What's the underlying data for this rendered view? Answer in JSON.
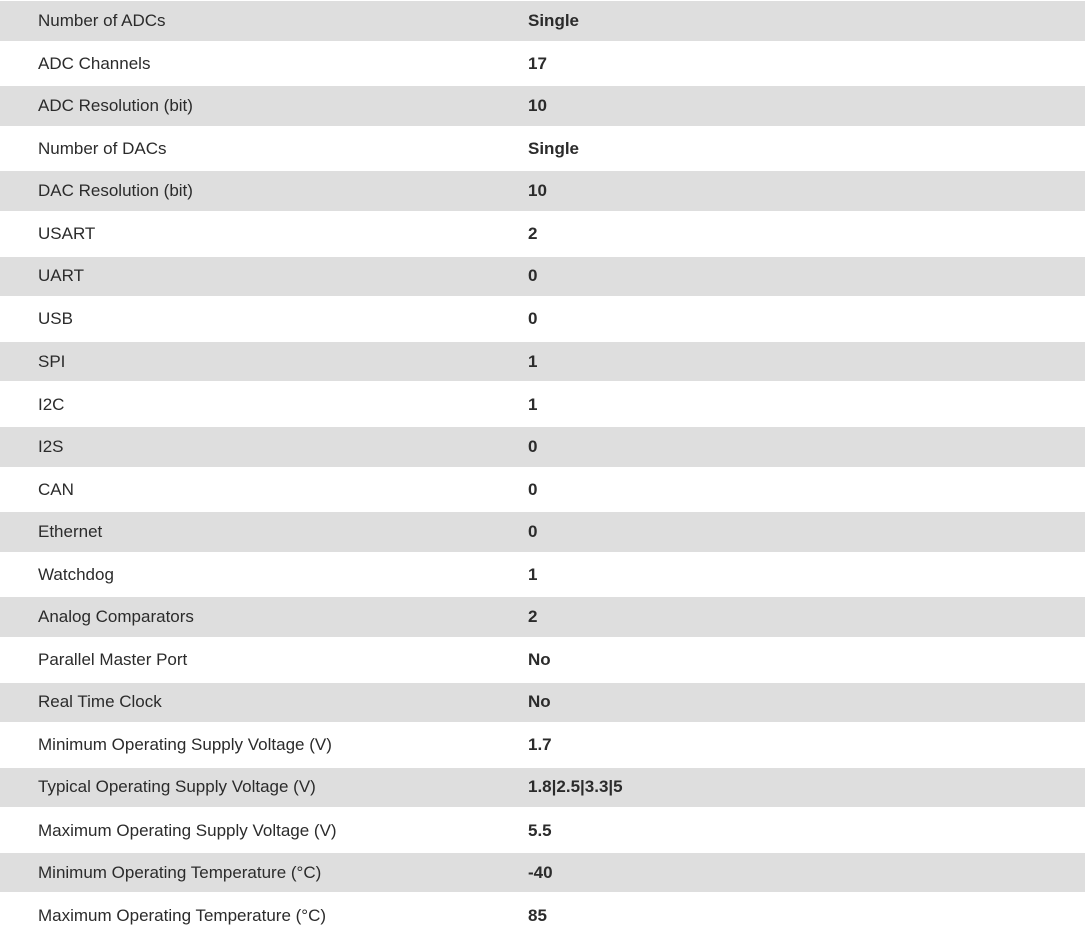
{
  "rows": [
    {
      "label": "Number of ADCs",
      "value": "Single"
    },
    {
      "label": "ADC Channels",
      "value": "17"
    },
    {
      "label": "ADC Resolution (bit)",
      "value": "10"
    },
    {
      "label": "Number of DACs",
      "value": "Single"
    },
    {
      "label": "DAC Resolution (bit)",
      "value": "10"
    },
    {
      "label": "USART",
      "value": "2"
    },
    {
      "label": "UART",
      "value": "0"
    },
    {
      "label": "USB",
      "value": "0"
    },
    {
      "label": "SPI",
      "value": "1"
    },
    {
      "label": "I2C",
      "value": "1"
    },
    {
      "label": "I2S",
      "value": "0"
    },
    {
      "label": "CAN",
      "value": "0"
    },
    {
      "label": "Ethernet",
      "value": "0"
    },
    {
      "label": "Watchdog",
      "value": "1"
    },
    {
      "label": "Analog Comparators",
      "value": "2"
    },
    {
      "label": "Parallel Master Port",
      "value": "No"
    },
    {
      "label": "Real Time Clock",
      "value": "No"
    },
    {
      "label": "Minimum Operating Supply Voltage (V)",
      "value": "1.7"
    },
    {
      "label": "Typical Operating Supply Voltage (V)",
      "value": "1.8|2.5|3.3|5"
    },
    {
      "label": "Maximum Operating Supply Voltage (V)",
      "value": "5.5"
    },
    {
      "label": "Minimum Operating Temperature (°C)",
      "value": "-40"
    },
    {
      "label": "Maximum Operating Temperature (°C)",
      "value": "85"
    }
  ]
}
